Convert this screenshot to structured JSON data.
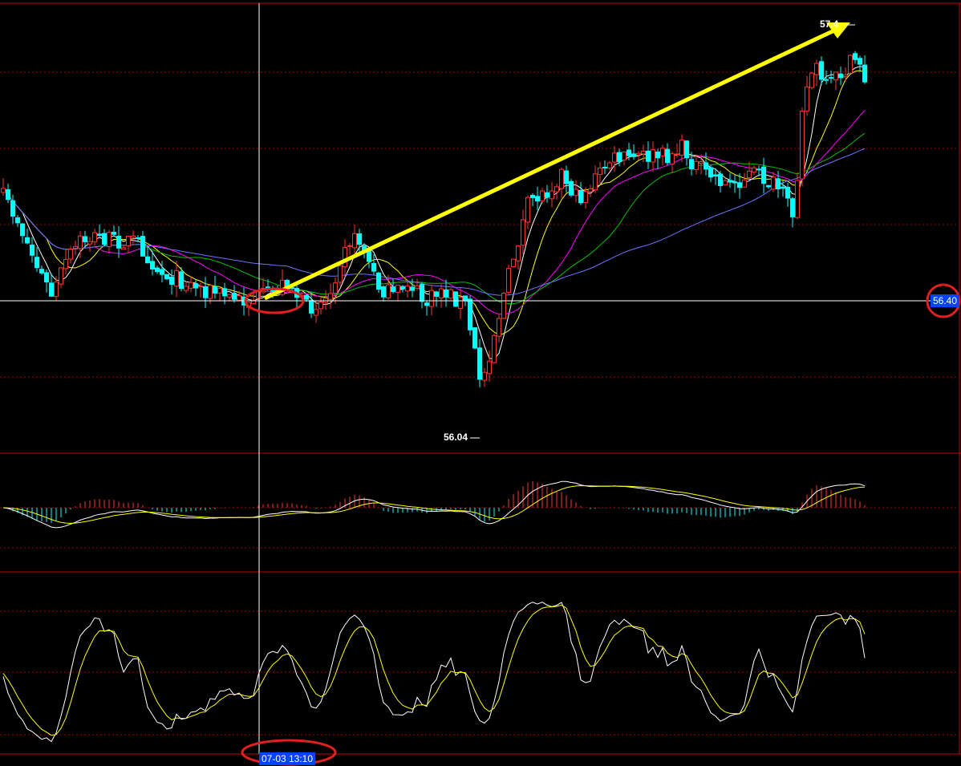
{
  "labels": {
    "high": "57.4",
    "low": "56.04",
    "crosshair_price": "56.40",
    "crosshair_time": "07-03 13:10"
  }
}
